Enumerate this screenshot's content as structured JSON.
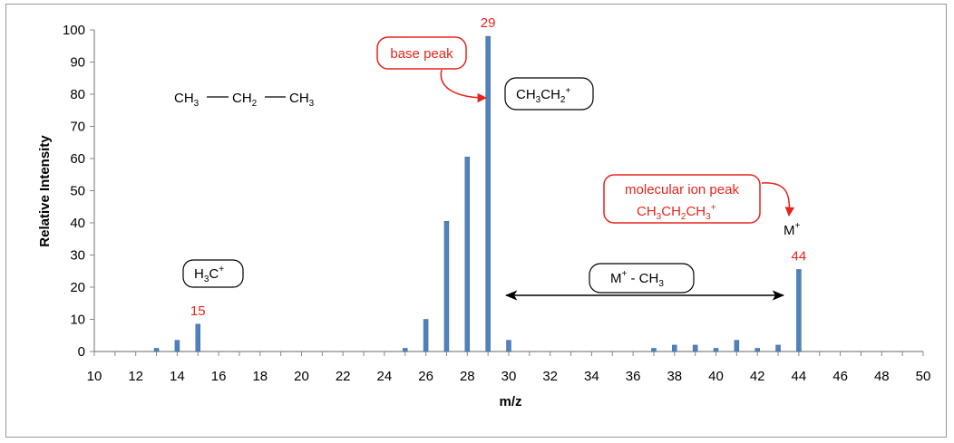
{
  "chart_data": {
    "type": "bar",
    "xlabel": "m/z",
    "ylabel": "Relative Intensity",
    "xlim": [
      10,
      50
    ],
    "ylim": [
      0,
      100
    ],
    "x_ticks": [
      10,
      12,
      14,
      16,
      18,
      20,
      22,
      24,
      26,
      28,
      30,
      32,
      34,
      36,
      38,
      40,
      42,
      44,
      46,
      48,
      50
    ],
    "y_ticks": [
      0,
      10,
      20,
      30,
      40,
      50,
      60,
      70,
      80,
      90,
      100
    ],
    "bar_color": "#4f81bd",
    "grid": false,
    "legend": "none",
    "points": [
      {
        "x": 13,
        "y": 1
      },
      {
        "x": 14,
        "y": 3.5
      },
      {
        "x": 15,
        "y": 8.5
      },
      {
        "x": 25,
        "y": 1
      },
      {
        "x": 26,
        "y": 10
      },
      {
        "x": 27,
        "y": 40.5
      },
      {
        "x": 28,
        "y": 60.5
      },
      {
        "x": 29,
        "y": 98
      },
      {
        "x": 30,
        "y": 3.5
      },
      {
        "x": 37,
        "y": 1
      },
      {
        "x": 38,
        "y": 2
      },
      {
        "x": 39,
        "y": 2
      },
      {
        "x": 40,
        "y": 1
      },
      {
        "x": 41,
        "y": 3.5
      },
      {
        "x": 42,
        "y": 1
      },
      {
        "x": 43,
        "y": 2
      },
      {
        "x": 44,
        "y": 25.5
      }
    ],
    "peak_labels": [
      {
        "x": 15,
        "text": "15"
      },
      {
        "x": 29,
        "text": "29"
      },
      {
        "x": 44,
        "text": "44"
      }
    ],
    "annotations": {
      "molecule": {
        "a": "CH",
        "a_sub": "3",
        "b": "CH",
        "b_sub": "2",
        "c": "CH",
        "c_sub": "3"
      },
      "methyl_cation": {
        "main": "H",
        "sub": "3",
        "tail": "C",
        "sup": "+"
      },
      "ethyl_cation": {
        "a": "CH",
        "a_sub": "3",
        "b": "CH",
        "b_sub": "2",
        "sup": "+"
      },
      "base_peak": "base peak",
      "molecular_ion_line1": "molecular ion peak",
      "molecular_ion_line2": {
        "a": "CH",
        "a_sub": "3",
        "b": "CH",
        "b_sub": "2",
        "c": "CH",
        "c_sub": "3",
        "sup": "+"
      },
      "molecular_ion_symbol": {
        "main": "M",
        "sup": "+"
      },
      "loss": {
        "main": "M",
        "sup": "+",
        "mid": " - CH",
        "sub": "3"
      }
    },
    "accent_color": "#e8231c"
  }
}
